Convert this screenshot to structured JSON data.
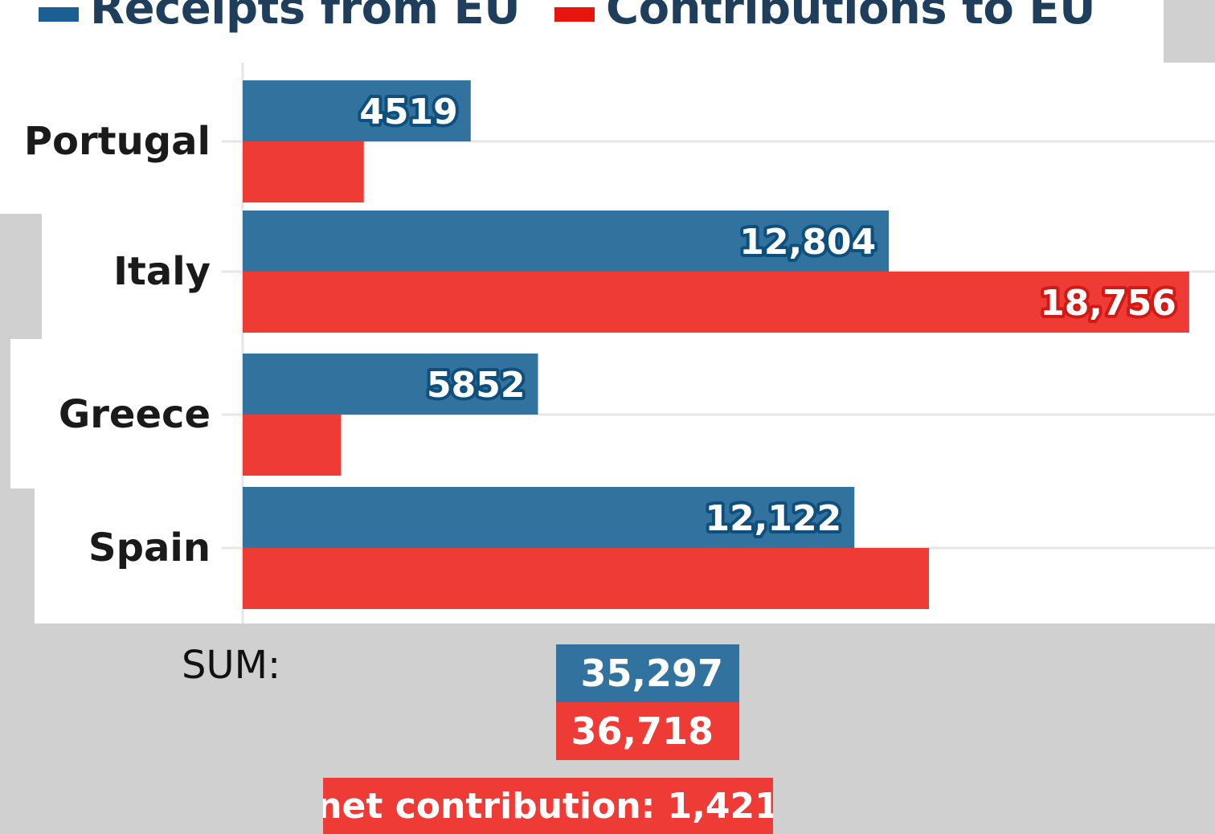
{
  "legend": {
    "receipts_label": "Receipts from EU",
    "contributions_label": "Contributions to EU"
  },
  "colors": {
    "receipts": "#31729e",
    "contributions": "#ef3b36",
    "receipts_legend": "#1d5f93",
    "contributions_legend": "#e8150e",
    "gridline": "#e6e6e6"
  },
  "chart_data": {
    "type": "bar",
    "orientation": "horizontal",
    "categories": [
      "Portugal",
      "Italy",
      "Greece",
      "Spain"
    ],
    "series": [
      {
        "name": "Receipts from EU",
        "values": [
          4519,
          12804,
          5852,
          12122
        ],
        "labels": [
          "4519",
          "12,804",
          "5852",
          "12,122"
        ]
      },
      {
        "name": "Contributions to EU",
        "values": [
          2400,
          18756,
          1950,
          13600
        ],
        "labels": [
          "",
          "18,756",
          "",
          ""
        ]
      }
    ],
    "xlim": [
      0,
      19000
    ],
    "legend_position": "top-left"
  },
  "summary": {
    "sum_label": "SUM:",
    "receipts_total": "35,297",
    "contributions_total": "36,718",
    "net_contribution": "net contribution: 1,421"
  }
}
